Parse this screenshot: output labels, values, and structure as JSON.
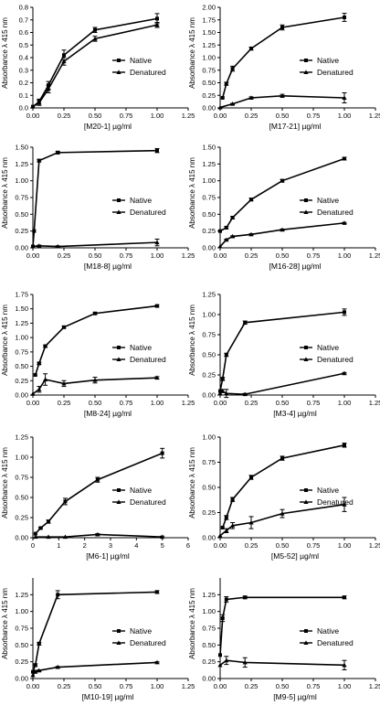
{
  "legend_labels": {
    "native": "Native",
    "denatured": "Denatured"
  },
  "colors": {
    "line": "#000000",
    "background": "#ffffff"
  },
  "chart_data": [
    {
      "id": "M20-1",
      "type": "line",
      "xlabel": "[M20-1] µg/ml",
      "ylabel": "Absorbance λ 415 nm",
      "xlim": [
        0,
        1.25
      ],
      "ylim": [
        0,
        0.8
      ],
      "xticks": [
        0,
        0.25,
        0.5,
        0.75,
        1,
        1.25
      ],
      "xtick_labels": [
        "0.00",
        "0.25",
        "0.50",
        "0.75",
        "1.00",
        "1.25"
      ],
      "yticks": [
        0,
        0.1,
        0.2,
        0.3,
        0.4,
        0.5,
        0.6,
        0.7,
        0.8
      ],
      "ytick_labels": [
        "0.0",
        "0.1",
        "0.2",
        "0.3",
        "0.4",
        "0.5",
        "0.6",
        "0.7",
        "0.8"
      ],
      "legend": "right",
      "series": [
        {
          "name": "Native",
          "marker": "square",
          "points": [
            [
              0,
              0.01
            ],
            [
              0.05,
              0.05
            ],
            [
              0.125,
              0.18
            ],
            [
              0.25,
              0.42
            ],
            [
              0.5,
              0.62
            ],
            [
              1,
              0.71
            ]
          ],
          "errors": [
            0,
            0.02,
            0.03,
            0.04,
            0.02,
            0.04
          ]
        },
        {
          "name": "Denatured",
          "marker": "triangle",
          "points": [
            [
              0,
              0.01
            ],
            [
              0.05,
              0.04
            ],
            [
              0.125,
              0.15
            ],
            [
              0.25,
              0.37
            ],
            [
              0.5,
              0.55
            ],
            [
              1,
              0.66
            ]
          ],
          "errors": [
            0,
            0.02,
            0.03,
            0.03,
            0.02,
            0.02
          ]
        }
      ]
    },
    {
      "id": "M17-21",
      "type": "line",
      "xlabel": "[M17-21] µg/ml",
      "ylabel": "Absorbance λ 415 nm",
      "xlim": [
        0,
        1.25
      ],
      "ylim": [
        0,
        2.0
      ],
      "xticks": [
        0,
        0.25,
        0.5,
        0.75,
        1,
        1.25
      ],
      "xtick_labels": [
        "0.00",
        "0.25",
        "0.50",
        "0.75",
        "1.00",
        "1.25"
      ],
      "yticks": [
        0,
        0.25,
        0.5,
        0.75,
        1,
        1.25,
        1.5,
        1.75,
        2
      ],
      "ytick_labels": [
        "0.00",
        "0.25",
        "0.50",
        "0.75",
        "1.00",
        "1.25",
        "1.50",
        "1.75",
        "2.00"
      ],
      "legend": "right",
      "series": [
        {
          "name": "Native",
          "marker": "square",
          "points": [
            [
              0.02,
              0.2
            ],
            [
              0.05,
              0.48
            ],
            [
              0.1,
              0.78
            ],
            [
              0.25,
              1.18
            ],
            [
              0.5,
              1.6
            ],
            [
              1,
              1.8
            ]
          ],
          "errors": [
            0,
            0.03,
            0.05,
            0.03,
            0.05,
            0.08
          ]
        },
        {
          "name": "Denatured",
          "marker": "triangle",
          "points": [
            [
              0,
              0.01
            ],
            [
              0.1,
              0.08
            ],
            [
              0.25,
              0.2
            ],
            [
              0.5,
              0.24
            ],
            [
              1,
              0.2
            ]
          ],
          "errors": [
            0,
            0.01,
            0.02,
            0.03,
            0.1
          ]
        }
      ]
    },
    {
      "id": "M18-8",
      "type": "line",
      "xlabel": "[M18-8] µg/ml",
      "ylabel": "Absorbance λ 415 nm",
      "xlim": [
        0,
        1.25
      ],
      "ylim": [
        0,
        1.5
      ],
      "xticks": [
        0,
        0.25,
        0.5,
        0.75,
        1,
        1.25
      ],
      "xtick_labels": [
        "0.00",
        "0.25",
        "0.50",
        "0.75",
        "1.00",
        "1.25"
      ],
      "yticks": [
        0,
        0.25,
        0.5,
        0.75,
        1,
        1.25,
        1.5
      ],
      "ytick_labels": [
        "0.00",
        "0.25",
        "0.50",
        "0.75",
        "1.00",
        "1.25",
        "1.50"
      ],
      "legend": "right",
      "series": [
        {
          "name": "Native",
          "marker": "square",
          "points": [
            [
              0,
              0.02
            ],
            [
              0.01,
              0.25
            ],
            [
              0.05,
              1.3
            ],
            [
              0.2,
              1.42
            ],
            [
              1,
              1.45
            ]
          ],
          "errors": [
            0,
            0,
            0.02,
            0.02,
            0.03
          ]
        },
        {
          "name": "Denatured",
          "marker": "triangle",
          "points": [
            [
              0,
              0.02
            ],
            [
              0.05,
              0.03
            ],
            [
              0.2,
              0.02
            ],
            [
              1,
              0.08
            ]
          ],
          "errors": [
            0,
            0.01,
            0.01,
            0.05
          ]
        }
      ]
    },
    {
      "id": "M16-28",
      "type": "line",
      "xlabel": "[M16-28] µg/ml",
      "ylabel": "Absorbance λ 415 nm",
      "xlim": [
        0,
        1.25
      ],
      "ylim": [
        0,
        1.5
      ],
      "xticks": [
        0,
        0.25,
        0.5,
        0.75,
        1,
        1.25
      ],
      "xtick_labels": [
        "0.00",
        "0.25",
        "0.50",
        "0.75",
        "1.00",
        "1.25"
      ],
      "yticks": [
        0,
        0.25,
        0.5,
        0.75,
        1,
        1.25,
        1.5
      ],
      "ytick_labels": [
        "0.00",
        "0.25",
        "0.50",
        "0.75",
        "1.00",
        "1.25",
        "1.50"
      ],
      "legend": "right",
      "series": [
        {
          "name": "Native",
          "marker": "square",
          "points": [
            [
              0,
              0.25
            ],
            [
              0.05,
              0.3
            ],
            [
              0.1,
              0.45
            ],
            [
              0.25,
              0.72
            ],
            [
              0.5,
              1.0
            ],
            [
              1,
              1.33
            ]
          ],
          "errors": [
            0,
            0.02,
            0.02,
            0.02,
            0.02,
            0.02
          ]
        },
        {
          "name": "Denatured",
          "marker": "triangle",
          "points": [
            [
              0,
              0.02
            ],
            [
              0.05,
              0.12
            ],
            [
              0.1,
              0.17
            ],
            [
              0.25,
              0.2
            ],
            [
              0.5,
              0.27
            ],
            [
              1,
              0.37
            ]
          ],
          "errors": [
            0,
            0.01,
            0.01,
            0.01,
            0.01,
            0.01
          ]
        }
      ]
    },
    {
      "id": "M8-24",
      "type": "line",
      "xlabel": "[M8-24] µg/ml",
      "ylabel": "Absorbance λ 415 nm",
      "xlim": [
        0,
        1.25
      ],
      "ylim": [
        0,
        1.75
      ],
      "xticks": [
        0,
        0.25,
        0.5,
        0.75,
        1,
        1.25
      ],
      "xtick_labels": [
        "0.00",
        "0.25",
        "0.50",
        "0.75",
        "1.00",
        "1.25"
      ],
      "yticks": [
        0,
        0.25,
        0.5,
        0.75,
        1,
        1.25,
        1.5,
        1.75
      ],
      "ytick_labels": [
        "0.00",
        "0.25",
        "0.50",
        "0.75",
        "1.00",
        "1.25",
        "1.50",
        "1.75"
      ],
      "legend": "right",
      "series": [
        {
          "name": "Native",
          "marker": "square",
          "points": [
            [
              0.02,
              0.35
            ],
            [
              0.05,
              0.55
            ],
            [
              0.1,
              0.85
            ],
            [
              0.25,
              1.18
            ],
            [
              0.5,
              1.42
            ],
            [
              1,
              1.55
            ]
          ],
          "errors": [
            0,
            0.02,
            0.02,
            0.02,
            0.02,
            0.02
          ]
        },
        {
          "name": "Denatured",
          "marker": "triangle",
          "points": [
            [
              0,
              0.02
            ],
            [
              0.05,
              0.1
            ],
            [
              0.1,
              0.27
            ],
            [
              0.25,
              0.2
            ],
            [
              0.5,
              0.26
            ],
            [
              1,
              0.3
            ]
          ],
          "errors": [
            0,
            0.05,
            0.1,
            0.05,
            0.05,
            0.02
          ]
        }
      ]
    },
    {
      "id": "M3-4",
      "type": "line",
      "xlabel": "[M3-4] µg/ml",
      "ylabel": "Absorbance λ 415 nm",
      "xlim": [
        0,
        1.25
      ],
      "ylim": [
        0,
        1.25
      ],
      "xticks": [
        0,
        0.25,
        0.5,
        0.75,
        1,
        1.25
      ],
      "xtick_labels": [
        "0.00",
        "0.25",
        "0.50",
        "0.75",
        "1.00",
        "1.25"
      ],
      "yticks": [
        0,
        0.25,
        0.5,
        0.75,
        1,
        1.25
      ],
      "ytick_labels": [
        "0.00",
        "0.25",
        "0.50",
        "0.75",
        "1.00",
        "1.25"
      ],
      "legend": "right",
      "series": [
        {
          "name": "Native",
          "marker": "square",
          "points": [
            [
              0,
              0.05
            ],
            [
              0.02,
              0.2
            ],
            [
              0.05,
              0.5
            ],
            [
              0.2,
              0.9
            ],
            [
              1,
              1.03
            ]
          ],
          "errors": [
            0,
            0.02,
            0.02,
            0.02,
            0.04
          ]
        },
        {
          "name": "Denatured",
          "marker": "triangle",
          "points": [
            [
              0,
              0.02
            ],
            [
              0.02,
              0.05
            ],
            [
              0.05,
              0.02
            ],
            [
              0.2,
              0.01
            ],
            [
              1,
              0.27
            ]
          ],
          "errors": [
            0,
            0.02,
            0.05,
            0.01,
            0.01
          ]
        }
      ]
    },
    {
      "id": "M6-1",
      "type": "line",
      "xlabel": "[M6-1] µg/ml",
      "ylabel": "Absorbance λ 415 nm",
      "xlim": [
        0,
        6
      ],
      "ylim": [
        0,
        1.25
      ],
      "xticks": [
        0,
        1,
        2,
        3,
        4,
        5,
        6
      ],
      "xtick_labels": [
        "0",
        "1",
        "2",
        "3",
        "4",
        "5",
        "6"
      ],
      "yticks": [
        0,
        0.25,
        0.5,
        0.75,
        1,
        1.25
      ],
      "ytick_labels": [
        "0.00",
        "0.25",
        "0.50",
        "0.75",
        "1.00",
        "1.25"
      ],
      "legend": "right",
      "series": [
        {
          "name": "Native",
          "marker": "square",
          "points": [
            [
              0.1,
              0.05
            ],
            [
              0.3,
              0.12
            ],
            [
              0.6,
              0.2
            ],
            [
              1.25,
              0.45
            ],
            [
              2.5,
              0.72
            ],
            [
              5,
              1.05
            ]
          ],
          "errors": [
            0,
            0.01,
            0.02,
            0.04,
            0.03,
            0.06
          ]
        },
        {
          "name": "Denatured",
          "marker": "triangle",
          "points": [
            [
              0.1,
              0.01
            ],
            [
              0.6,
              0.01
            ],
            [
              1.25,
              0.01
            ],
            [
              2.5,
              0.04
            ],
            [
              5,
              0.01
            ]
          ],
          "errors": [
            0,
            0,
            0,
            0.01,
            0.01
          ]
        }
      ]
    },
    {
      "id": "M5-52",
      "type": "line",
      "xlabel": "[M5-52] µg/ml",
      "ylabel": "Absorbance λ 415 nm",
      "xlim": [
        0,
        1.25
      ],
      "ylim": [
        0,
        1.0
      ],
      "xticks": [
        0,
        0.25,
        0.5,
        0.75,
        1,
        1.25
      ],
      "xtick_labels": [
        "0.00",
        "0.25",
        "0.50",
        "0.75",
        "1.00",
        "1.25"
      ],
      "yticks": [
        0,
        0.25,
        0.5,
        0.75,
        1
      ],
      "ytick_labels": [
        "0.00",
        "0.25",
        "0.50",
        "0.75",
        "1.00"
      ],
      "legend": "right",
      "series": [
        {
          "name": "Native",
          "marker": "square",
          "points": [
            [
              0.02,
              0.1
            ],
            [
              0.05,
              0.2
            ],
            [
              0.1,
              0.38
            ],
            [
              0.25,
              0.6
            ],
            [
              0.5,
              0.79
            ],
            [
              1,
              0.92
            ]
          ],
          "errors": [
            0,
            0.02,
            0.02,
            0.02,
            0.02,
            0.02
          ]
        },
        {
          "name": "Denatured",
          "marker": "triangle",
          "points": [
            [
              0,
              0.02
            ],
            [
              0.05,
              0.07
            ],
            [
              0.1,
              0.12
            ],
            [
              0.25,
              0.15
            ],
            [
              0.5,
              0.24
            ],
            [
              1,
              0.33
            ]
          ],
          "errors": [
            0,
            0.02,
            0.03,
            0.06,
            0.04,
            0.07
          ]
        }
      ]
    },
    {
      "id": "M10-19",
      "type": "line",
      "xlabel": "[M10-19] µg/ml",
      "ylabel": "Absorbance λ 415 nm",
      "xlim": [
        0,
        1.25
      ],
      "ylim": [
        0,
        1.5
      ],
      "xticks": [
        0,
        0.25,
        0.5,
        0.75,
        1,
        1.25
      ],
      "xtick_labels": [
        "0.00",
        "0.25",
        "0.50",
        "0.75",
        "1.00",
        "1.25"
      ],
      "yticks": [
        0,
        0.25,
        0.5,
        0.75,
        1,
        1.25
      ],
      "ytick_labels": [
        "0.00",
        "0.25",
        "0.50",
        "0.75",
        "1.00",
        "1.25"
      ],
      "legend": "right",
      "series": [
        {
          "name": "Native",
          "marker": "square",
          "points": [
            [
              0,
              0.1
            ],
            [
              0.02,
              0.2
            ],
            [
              0.05,
              0.52
            ],
            [
              0.2,
              1.25
            ],
            [
              1,
              1.29
            ]
          ],
          "errors": [
            0,
            0.02,
            0.02,
            0.06,
            0.02
          ]
        },
        {
          "name": "Denatured",
          "marker": "triangle",
          "points": [
            [
              0,
              0.05
            ],
            [
              0.02,
              0.1
            ],
            [
              0.05,
              0.12
            ],
            [
              0.2,
              0.17
            ],
            [
              1,
              0.24
            ]
          ],
          "errors": [
            0,
            0.02,
            0.01,
            0.01,
            0.01
          ]
        }
      ]
    },
    {
      "id": "M9-5",
      "type": "line",
      "xlabel": "[M9-5] µg/ml",
      "ylabel": "Absorbance λ 415 nm",
      "xlim": [
        0,
        1.25
      ],
      "ylim": [
        0,
        1.5
      ],
      "xticks": [
        0,
        0.25,
        0.5,
        0.75,
        1,
        1.25
      ],
      "xtick_labels": [
        "0.00",
        "0.25",
        "0.50",
        "0.75",
        "1.00",
        "1.25"
      ],
      "yticks": [
        0,
        0.25,
        0.5,
        0.75,
        1,
        1.25
      ],
      "ytick_labels": [
        "0.00",
        "0.25",
        "0.50",
        "0.75",
        "1.00",
        "1.25"
      ],
      "legend": "right",
      "series": [
        {
          "name": "Native",
          "marker": "square",
          "points": [
            [
              0,
              0.35
            ],
            [
              0.02,
              0.9
            ],
            [
              0.05,
              1.18
            ],
            [
              0.2,
              1.21
            ],
            [
              1,
              1.21
            ]
          ],
          "errors": [
            0,
            0.05,
            0.04,
            0.02,
            0.02
          ]
        },
        {
          "name": "Denatured",
          "marker": "triangle",
          "points": [
            [
              0,
              0.2
            ],
            [
              0.05,
              0.27
            ],
            [
              0.2,
              0.24
            ],
            [
              1,
              0.2
            ]
          ],
          "errors": [
            0,
            0.06,
            0.07,
            0.07
          ]
        }
      ]
    }
  ]
}
